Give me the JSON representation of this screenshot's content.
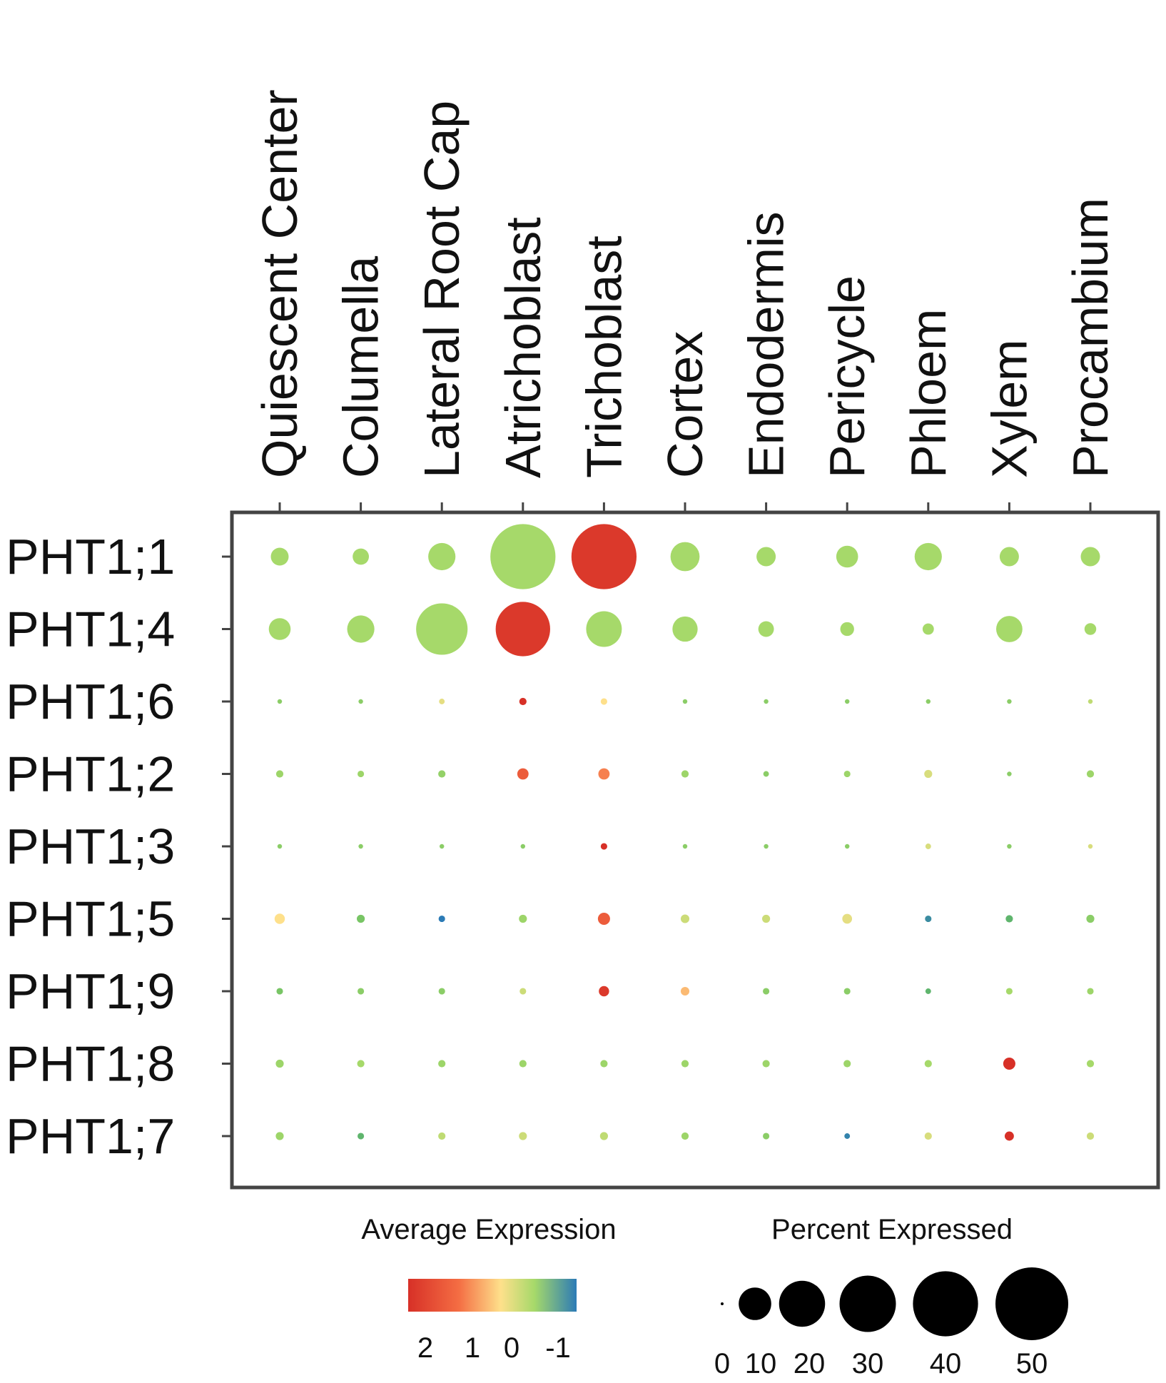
{
  "chart_data": {
    "type": "dot-plot",
    "columns": [
      "Quiescent Center",
      "Columella",
      "Lateral Root Cap",
      "Atrichoblast",
      "Trichoblast",
      "Cortex",
      "Endodermis",
      "Pericycle",
      "Phloem",
      "Xylem",
      "Procambium"
    ],
    "rows": [
      "PHT1;1",
      "PHT1;4",
      "PHT1;6",
      "PHT1;2",
      "PHT1;3",
      "PHT1;5",
      "PHT1;9",
      "PHT1;8",
      "PHT1;7"
    ],
    "percent_expressed": [
      [
        3,
        2.5,
        7,
        40,
        40,
        8,
        3.5,
        4.5,
        7,
        3.5,
        3.5
      ],
      [
        4.5,
        7,
        25,
        28,
        12,
        6,
        2.3,
        1.8,
        1.2,
        6.5,
        1.3
      ],
      [
        0.2,
        0.2,
        0.3,
        0.5,
        0.4,
        0.2,
        0.2,
        0.2,
        0.2,
        0.2,
        0.2
      ],
      [
        0.5,
        0.4,
        0.5,
        1.2,
        1.2,
        0.5,
        0.3,
        0.4,
        0.6,
        0.2,
        0.5
      ],
      [
        0.2,
        0.2,
        0.2,
        0.2,
        0.4,
        0.2,
        0.2,
        0.2,
        0.3,
        0.2,
        0.2
      ],
      [
        1.0,
        0.6,
        0.4,
        0.6,
        1.4,
        0.7,
        0.6,
        0.9,
        0.4,
        0.5,
        0.6
      ],
      [
        0.4,
        0.4,
        0.4,
        0.4,
        1.0,
        0.7,
        0.4,
        0.4,
        0.3,
        0.4,
        0.4
      ],
      [
        0.6,
        0.5,
        0.5,
        0.5,
        0.5,
        0.5,
        0.5,
        0.5,
        0.5,
        1.4,
        0.5
      ],
      [
        0.6,
        0.4,
        0.5,
        0.6,
        0.6,
        0.5,
        0.4,
        0.3,
        0.5,
        0.8,
        0.5
      ]
    ],
    "average_expression": [
      [
        0.3,
        0.3,
        0.3,
        0.3,
        2.2,
        0.3,
        0.3,
        0.3,
        0.3,
        0.3,
        0.3
      ],
      [
        0.3,
        0.3,
        0.3,
        2.2,
        0.3,
        0.3,
        0.3,
        0.3,
        0.3,
        0.3,
        0.3
      ],
      [
        0,
        0,
        0.8,
        2.3,
        1.0,
        0,
        0,
        0,
        0,
        0,
        0.5
      ],
      [
        0.2,
        0.2,
        0.1,
        1.8,
        1.5,
        0.2,
        0,
        0.2,
        0.7,
        0,
        0.2
      ],
      [
        0,
        0,
        0,
        0,
        2.3,
        0,
        0,
        0,
        0.7,
        0,
        0.7
      ],
      [
        1.0,
        -0.2,
        -1.2,
        0.2,
        1.8,
        0.6,
        0.6,
        0.8,
        -1.0,
        -0.5,
        0
      ],
      [
        -0.2,
        0,
        0,
        0.6,
        2.2,
        1.2,
        0,
        0,
        -0.5,
        0.3,
        0.2
      ],
      [
        0.2,
        0.3,
        0.2,
        0.2,
        0.2,
        0.2,
        0.2,
        0.2,
        0.3,
        2.3,
        0.3
      ],
      [
        0.2,
        -0.5,
        0.5,
        0.6,
        0.5,
        0.2,
        0,
        -1.1,
        0.7,
        2.3,
        0.6
      ]
    ],
    "legend": {
      "color_title": "Average Expression",
      "color_ticks": [
        2,
        1,
        0,
        -1
      ],
      "color_range": [
        2.3,
        -1.2
      ],
      "size_title": "Percent Expressed",
      "size_ticks": [
        0,
        10,
        20,
        30,
        40,
        50
      ],
      "size_max": 50
    },
    "colors": {
      "high": "#d73027",
      "mid_high": "#f46d43",
      "mid": "#fee08b",
      "mid_low": "#a6d96a",
      "low": "#2c7bb6",
      "frame": "#444444",
      "legend_dot": "#000000"
    }
  }
}
